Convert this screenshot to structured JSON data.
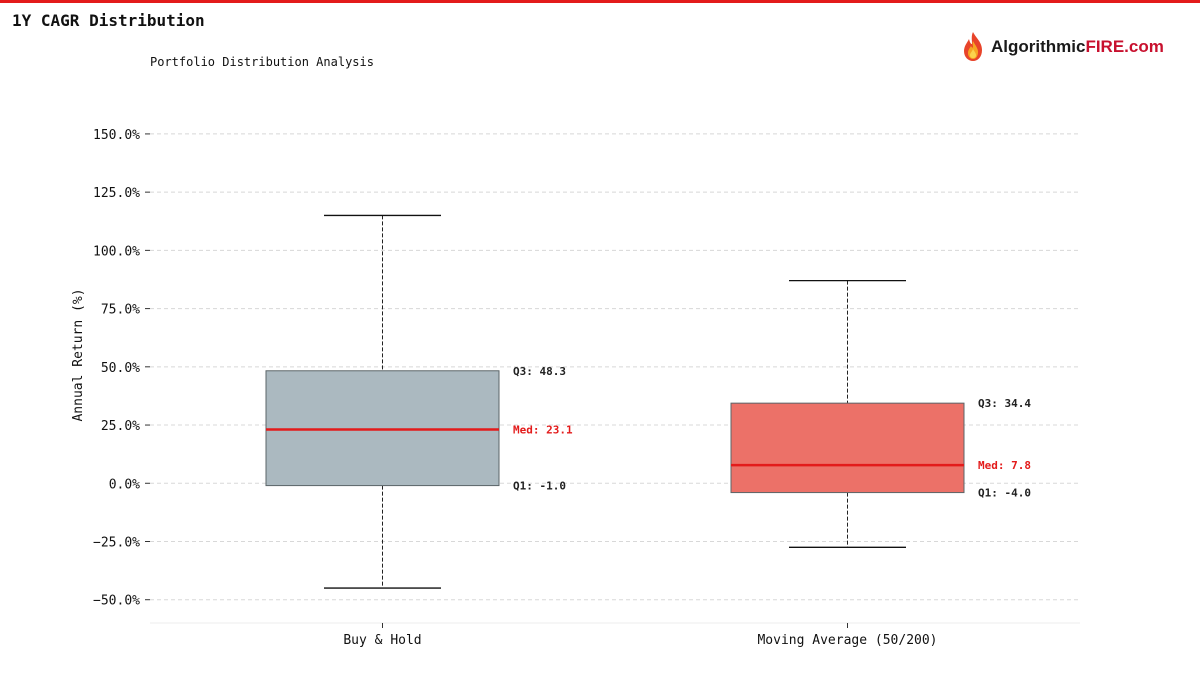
{
  "header": {
    "title": "1Y CAGR Distribution",
    "subtitle": "Portfolio Distribution Analysis"
  },
  "logo": {
    "text_dark": "Algorithmic",
    "text_red": "FIRE.com"
  },
  "colors": {
    "accent": "#e31b1b",
    "buy_hold_box": "#abb9c0",
    "moving_avg_box": "#ec7168",
    "median_line": "#e31b1b"
  },
  "chart_data": {
    "type": "box",
    "title": "",
    "xlabel": "",
    "ylabel": "Annual Return (%)",
    "ylim": [
      -60,
      168
    ],
    "yticks": [
      -50,
      -25,
      0,
      25,
      50,
      75,
      100,
      125,
      150
    ],
    "ytick_labels": [
      "−50.0%",
      "−25.0%",
      "0.0%",
      "25.0%",
      "50.0%",
      "75.0%",
      "100.0%",
      "125.0%",
      "150.0%"
    ],
    "grid": true,
    "categories": [
      "Buy & Hold",
      "Moving Average (50/200)"
    ],
    "boxes": [
      {
        "name": "Buy & Hold",
        "whisker_low": -45,
        "q1": -1.0,
        "median": 23.1,
        "q3": 48.3,
        "whisker_high": 115,
        "color": "#abb9c0",
        "labels": {
          "q3": "Q3: 48.3",
          "median": "Med: 23.1",
          "q1": "Q1: -1.0"
        }
      },
      {
        "name": "Moving Average (50/200)",
        "whisker_low": -27.5,
        "q1": -4.0,
        "median": 7.8,
        "q3": 34.4,
        "whisker_high": 87,
        "color": "#ec7168",
        "labels": {
          "q3": "Q3: 34.4",
          "median": "Med: 7.8",
          "q1": "Q1: -4.0"
        }
      }
    ]
  }
}
